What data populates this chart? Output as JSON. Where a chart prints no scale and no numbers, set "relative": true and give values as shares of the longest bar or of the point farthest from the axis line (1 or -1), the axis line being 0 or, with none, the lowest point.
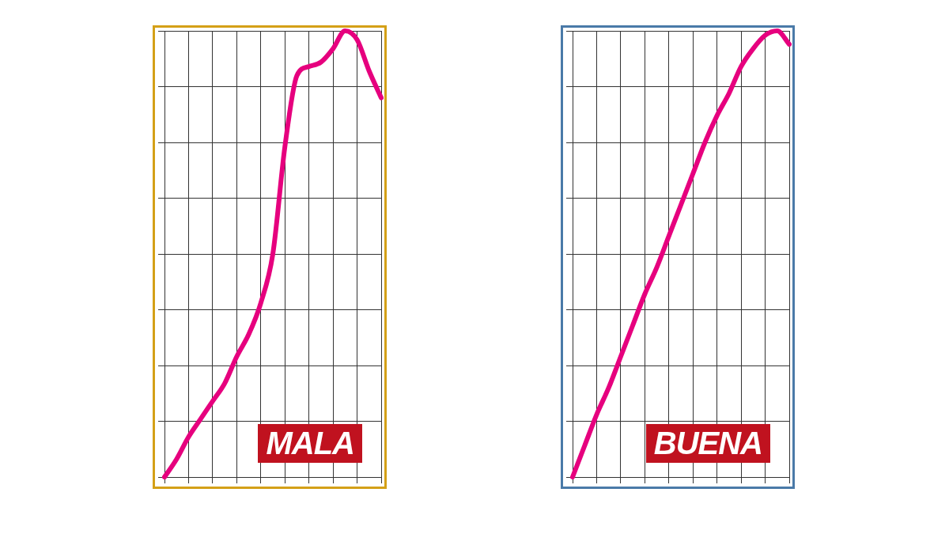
{
  "chart_data": [
    {
      "type": "line",
      "relative": true,
      "grid": true,
      "legend": false,
      "marker": "none",
      "annotations": [
        "MALA"
      ],
      "categories": [
        null,
        null,
        null,
        null,
        null,
        null,
        null,
        null,
        null,
        null,
        null,
        null,
        null,
        null,
        null,
        null,
        null,
        null,
        null
      ],
      "series": [
        {
          "color": "#e6007e",
          "values": [
            0,
            0.04,
            0.09,
            0.13,
            0.17,
            0.21,
            0.27,
            0.32,
            0.39,
            0.5,
            0.74,
            0.9,
            0.92,
            0.93,
            0.96,
            1,
            0.98,
            0.91,
            0.85
          ]
        }
      ]
    },
    {
      "type": "line",
      "relative": true,
      "grid": true,
      "legend": false,
      "marker": "none",
      "annotations": [
        "BUENA"
      ],
      "categories": [
        null,
        null,
        null,
        null,
        null,
        null,
        null,
        null,
        null,
        null,
        null,
        null,
        null,
        null,
        null,
        null,
        null,
        null,
        null
      ],
      "series": [
        {
          "color": "#e6007e",
          "values": [
            0,
            0.07,
            0.14,
            0.2,
            0.27,
            0.34,
            0.41,
            0.47,
            0.54,
            0.61,
            0.68,
            0.75,
            0.81,
            0.86,
            0.92,
            0.96,
            0.99,
            1,
            0.97
          ]
        }
      ]
    }
  ]
}
